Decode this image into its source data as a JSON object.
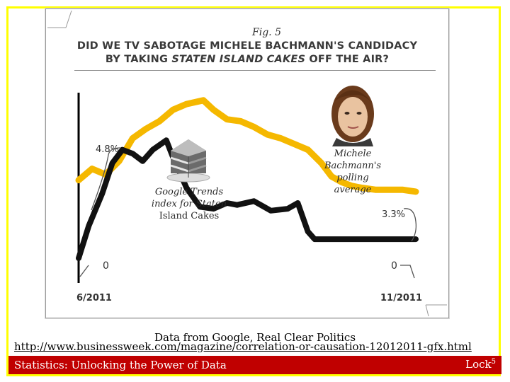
{
  "chart_data": {
    "type": "line",
    "fig_label": "Fig. 5",
    "title_line1": "DID WE TV SABOTAGE MICHELE BACHMANN'S CANDIDACY",
    "title_line2_prefix": "BY TAKING ",
    "title_line2_italic": "STATEN ISLAND CAKES",
    "title_line2_suffix": " OFF THE AIR?",
    "x_start_label": "6/2011",
    "x_end_label": "11/2011",
    "x_domain": [
      0,
      100
    ],
    "y_domain": [
      0,
      100
    ],
    "series": [
      {
        "name": "Michele Bachmann's polling average",
        "color": "#f5b800",
        "start_label": "4.8%",
        "end_label": "3.3%",
        "values": [
          [
            0,
            54
          ],
          [
            4,
            60
          ],
          [
            8,
            57
          ],
          [
            12,
            64
          ],
          [
            16,
            76
          ],
          [
            20,
            81
          ],
          [
            24,
            85
          ],
          [
            28,
            91
          ],
          [
            32,
            94
          ],
          [
            37,
            96
          ],
          [
            40,
            91
          ],
          [
            44,
            86
          ],
          [
            48,
            85
          ],
          [
            52,
            82
          ],
          [
            56,
            78
          ],
          [
            60,
            76
          ],
          [
            64,
            73
          ],
          [
            68,
            70
          ],
          [
            72,
            63
          ],
          [
            75,
            56
          ],
          [
            78,
            53
          ],
          [
            81,
            51
          ],
          [
            84,
            50
          ],
          [
            88,
            49
          ],
          [
            92,
            49
          ],
          [
            96,
            49
          ],
          [
            100,
            48
          ]
        ]
      },
      {
        "name": "Google Trends index for Staten Island Cakes",
        "color": "#111111",
        "start_label": "0",
        "end_label": "0",
        "values": [
          [
            0,
            13
          ],
          [
            3,
            30
          ],
          [
            7,
            47
          ],
          [
            10,
            63
          ],
          [
            13,
            70
          ],
          [
            16,
            68
          ],
          [
            19,
            64
          ],
          [
            22,
            70
          ],
          [
            26,
            75
          ],
          [
            28,
            66
          ],
          [
            32,
            50
          ],
          [
            36,
            40
          ],
          [
            40,
            39
          ],
          [
            44,
            42
          ],
          [
            47,
            41
          ],
          [
            52,
            43
          ],
          [
            57,
            38
          ],
          [
            62,
            39
          ],
          [
            65,
            42
          ],
          [
            68,
            27
          ],
          [
            70,
            23
          ],
          [
            80,
            23
          ],
          [
            90,
            23
          ],
          [
            100,
            23
          ]
        ]
      }
    ],
    "annotations": {
      "cake_label": [
        "Google Trends",
        "index for Staten",
        "Island Cakes"
      ],
      "poll_label": [
        "Michele",
        "Bachmann's",
        "polling",
        "average"
      ]
    }
  },
  "source_text": "Data from Google, Real Clear Politics",
  "url_text": "http://www.businessweek.com/magazine/correlation-or-causation-12012011-gfx.html",
  "footer": {
    "left": "Statistics: Unlocking the Power of Data",
    "right": "Lock",
    "right_sup": "5"
  },
  "colors": {
    "frame": "#ffff00",
    "footer_bg": "#c00000",
    "poll_line": "#f5b800",
    "trend_line": "#111111"
  }
}
